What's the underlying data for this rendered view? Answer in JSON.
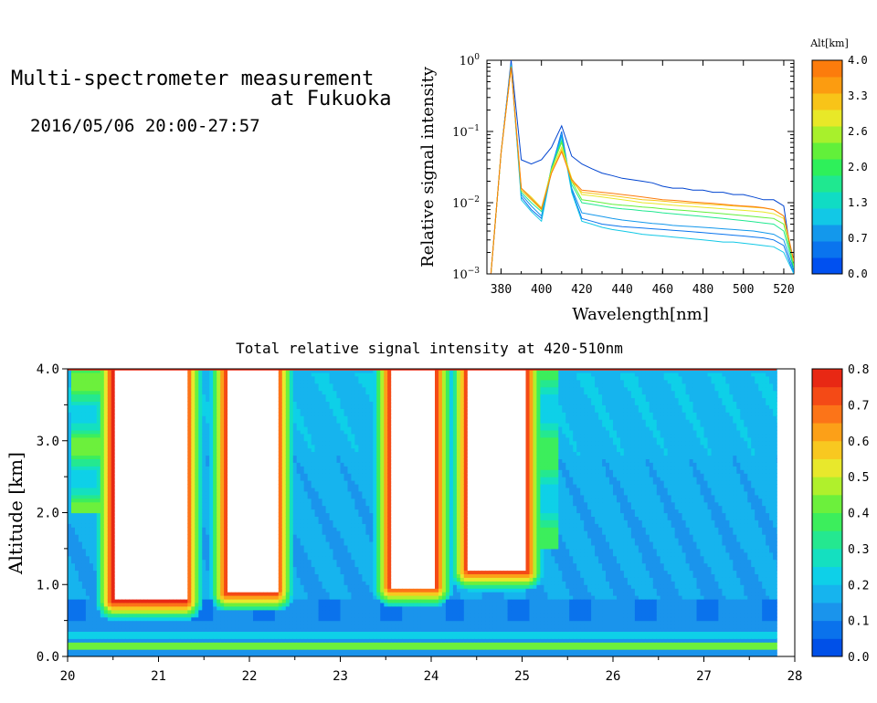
{
  "header": {
    "title_line1": "Multi-spectrometer measurement",
    "title_line2": "at Fukuoka",
    "datetime": "2016/05/06 20:00-27:57"
  },
  "spectrum_colorbar": {
    "label": "Alt[km]",
    "ticks": [
      "0.0",
      "0.7",
      "1.3",
      "2.0",
      "2.6",
      "3.3",
      "4.0"
    ],
    "colors": [
      "#0050f0",
      "#0a74ee",
      "#1398ec",
      "#12c8e6",
      "#10dcc4",
      "#1fe890",
      "#2ef05a",
      "#62f03a",
      "#a8f02c",
      "#e8e828",
      "#f8c418",
      "#fc9c10",
      "#fc7c0c"
    ]
  },
  "intensity_colorbar": {
    "ticks": [
      "0.0",
      "0.1",
      "0.2",
      "0.3",
      "0.4",
      "0.5",
      "0.6",
      "0.7",
      "0.8"
    ],
    "colors": [
      "#0050e8",
      "#0a72ec",
      "#1a94ec",
      "#16b4ee",
      "#0ed0e8",
      "#14e0c0",
      "#24e890",
      "#3cee5c",
      "#6cf03c",
      "#b0f02c",
      "#e8e82c",
      "#f8c820",
      "#fca018",
      "#fc7418",
      "#f44a16",
      "#e82814"
    ]
  },
  "chart_data": [
    {
      "type": "line",
      "title": "",
      "xlabel": "Wavelength[nm]",
      "ylabel": "Relative signal intensity",
      "xlim": [
        373,
        525
      ],
      "ylim": [
        0.001,
        1
      ],
      "yscale": "log",
      "grid": false,
      "legend": "colorbar-right",
      "x_ticks": [
        "380",
        "400",
        "420",
        "440",
        "460",
        "480",
        "500",
        "520"
      ],
      "y_ticks": [
        "10^-3",
        "10^-2",
        "10^-1",
        "10^0"
      ],
      "x": [
        375,
        380,
        385,
        390,
        395,
        400,
        405,
        410,
        415,
        420,
        425,
        430,
        435,
        440,
        445,
        450,
        455,
        460,
        465,
        470,
        475,
        480,
        485,
        490,
        495,
        500,
        505,
        510,
        515,
        520,
        525
      ],
      "series": [
        {
          "color": "#0044d0",
          "values": [
            0.001,
            0.05,
            1.0,
            0.04,
            0.035,
            0.04,
            0.06,
            0.12,
            0.045,
            0.035,
            0.03,
            0.026,
            0.024,
            0.022,
            0.021,
            0.02,
            0.019,
            0.017,
            0.016,
            0.016,
            0.015,
            0.015,
            0.014,
            0.014,
            0.013,
            0.013,
            0.012,
            0.011,
            0.011,
            0.009,
            0.001
          ]
        },
        {
          "color": "#0a74ee",
          "values": [
            0.001,
            0.05,
            0.9,
            0.012,
            0.008,
            0.006,
            0.03,
            0.1,
            0.015,
            0.006,
            0.0055,
            0.005,
            0.0048,
            0.0046,
            0.0045,
            0.0044,
            0.0043,
            0.0042,
            0.0041,
            0.004,
            0.0039,
            0.0038,
            0.0037,
            0.0036,
            0.0035,
            0.0034,
            0.0033,
            0.0032,
            0.003,
            0.0025,
            0.001
          ]
        },
        {
          "color": "#12c8e6",
          "values": [
            0.001,
            0.05,
            0.85,
            0.011,
            0.0075,
            0.0055,
            0.028,
            0.085,
            0.014,
            0.0055,
            0.005,
            0.0045,
            0.0042,
            0.004,
            0.0038,
            0.0036,
            0.0035,
            0.0034,
            0.0033,
            0.0032,
            0.0031,
            0.003,
            0.0029,
            0.0028,
            0.0028,
            0.0027,
            0.0026,
            0.0025,
            0.0024,
            0.002,
            0.001
          ]
        },
        {
          "color": "#1398ec",
          "values": [
            0.001,
            0.05,
            0.87,
            0.013,
            0.009,
            0.0065,
            0.032,
            0.09,
            0.016,
            0.0072,
            0.0068,
            0.0064,
            0.006,
            0.0057,
            0.0055,
            0.0053,
            0.0051,
            0.005,
            0.0048,
            0.0047,
            0.0046,
            0.0045,
            0.0044,
            0.0043,
            0.0042,
            0.0041,
            0.004,
            0.0038,
            0.0036,
            0.003,
            0.0011
          ]
        },
        {
          "color": "#1fe890",
          "values": [
            0.001,
            0.05,
            0.83,
            0.014,
            0.01,
            0.0075,
            0.03,
            0.075,
            0.018,
            0.01,
            0.0095,
            0.009,
            0.0085,
            0.0082,
            0.008,
            0.0077,
            0.0075,
            0.0072,
            0.007,
            0.0068,
            0.0066,
            0.0064,
            0.0062,
            0.006,
            0.0058,
            0.0056,
            0.0054,
            0.0052,
            0.005,
            0.004,
            0.0012
          ]
        },
        {
          "color": "#62f03a",
          "values": [
            0.001,
            0.05,
            0.82,
            0.015,
            0.011,
            0.008,
            0.03,
            0.07,
            0.02,
            0.011,
            0.0105,
            0.01,
            0.0095,
            0.0092,
            0.009,
            0.0087,
            0.0085,
            0.0082,
            0.008,
            0.0078,
            0.0076,
            0.0074,
            0.0072,
            0.007,
            0.0068,
            0.0066,
            0.0064,
            0.0062,
            0.006,
            0.005,
            0.0013
          ]
        },
        {
          "color": "#e8e828",
          "values": [
            0.001,
            0.05,
            0.8,
            0.016,
            0.012,
            0.0085,
            0.028,
            0.06,
            0.022,
            0.013,
            0.0125,
            0.012,
            0.0115,
            0.011,
            0.0105,
            0.01,
            0.0098,
            0.0095,
            0.0092,
            0.009,
            0.0088,
            0.0086,
            0.0084,
            0.0082,
            0.008,
            0.0078,
            0.0076,
            0.0074,
            0.007,
            0.006,
            0.0015
          ]
        },
        {
          "color": "#f8c418",
          "values": [
            0.001,
            0.05,
            0.8,
            0.015,
            0.011,
            0.008,
            0.026,
            0.055,
            0.02,
            0.014,
            0.0135,
            0.013,
            0.0125,
            0.012,
            0.0115,
            0.011,
            0.0108,
            0.0105,
            0.0102,
            0.01,
            0.0098,
            0.0096,
            0.0094,
            0.0092,
            0.009,
            0.0088,
            0.0086,
            0.0084,
            0.008,
            0.0065,
            0.0015
          ]
        },
        {
          "color": "#fc7c0c",
          "values": [
            0.001,
            0.05,
            0.8,
            0.016,
            0.0115,
            0.0082,
            0.026,
            0.052,
            0.021,
            0.015,
            0.0145,
            0.014,
            0.0135,
            0.013,
            0.0125,
            0.012,
            0.0115,
            0.011,
            0.0108,
            0.0105,
            0.0102,
            0.01,
            0.0098,
            0.0095,
            0.0092,
            0.009,
            0.0088,
            0.0085,
            0.008,
            0.0065,
            0.0015
          ]
        }
      ]
    },
    {
      "type": "heatmap",
      "title": "Total relative signal intensity at 420-510nm",
      "xlabel": "",
      "ylabel": "Altitude [km]",
      "xlim": [
        20,
        28
      ],
      "ylim": [
        0,
        4
      ],
      "zlim": [
        0,
        0.8
      ],
      "grid": false,
      "legend": "colorbar-right",
      "x_ticks": [
        "20",
        "21",
        "22",
        "23",
        "24",
        "25",
        "26",
        "27",
        "28"
      ],
      "y_ticks": [
        "0.0",
        "1.0",
        "2.0",
        "3.0",
        "4.0"
      ],
      "data_end_x": 27.8,
      "cloud_regions": [
        {
          "x_left": 20.5,
          "x_right": 21.3,
          "base_alt": 0.78
        },
        {
          "x_left": 21.75,
          "x_right": 22.3,
          "base_alt": 0.9
        },
        {
          "x_left": 23.55,
          "x_right": 24.05,
          "base_alt": 0.97
        },
        {
          "x_left": 24.4,
          "x_right": 25.05,
          "base_alt": 1.2
        }
      ]
    }
  ]
}
